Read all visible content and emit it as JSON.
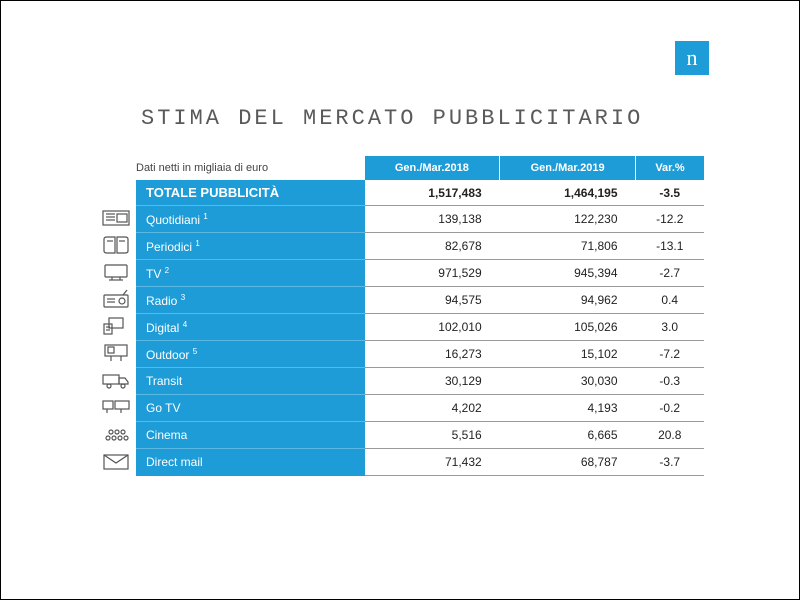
{
  "title": "STIMA DEL MERCATO PUBBLICITARIO",
  "subtitle": "Dati netti in migliaia di euro",
  "logo_text": "n",
  "colors": {
    "brand": "#1e9cd7",
    "text": "#222222",
    "border": "#999999"
  },
  "columns": [
    {
      "label": "Gen./Mar.2018"
    },
    {
      "label": "Gen./Mar.2019"
    },
    {
      "label": "Var.%"
    }
  ],
  "total_row": {
    "label": "TOTALE PUBBLICITÀ",
    "v2018": "1,517,483",
    "v2019": "1,464,195",
    "var": "-3.5"
  },
  "rows": [
    {
      "icon": "newspaper",
      "label": "Quotidiani",
      "sup": "1",
      "v2018": "139,138",
      "v2019": "122,230",
      "var": "-12.2"
    },
    {
      "icon": "book",
      "label": "Periodici",
      "sup": "1",
      "v2018": "82,678",
      "v2019": "71,806",
      "var": "-13.1"
    },
    {
      "icon": "tv",
      "label": "TV",
      "sup": "2",
      "v2018": "971,529",
      "v2019": "945,394",
      "var": "-2.7"
    },
    {
      "icon": "radio",
      "label": "Radio",
      "sup": "3",
      "v2018": "94,575",
      "v2019": "94,962",
      "var": "0.4"
    },
    {
      "icon": "digital",
      "label": "Digital",
      "sup": "4",
      "v2018": "102,010",
      "v2019": "105,026",
      "var": "3.0"
    },
    {
      "icon": "billboard",
      "label": "Outdoor",
      "sup": "5",
      "v2018": "16,273",
      "v2019": "15,102",
      "var": "-7.2"
    },
    {
      "icon": "truck",
      "label": "Transit",
      "sup": "",
      "v2018": "30,129",
      "v2019": "30,030",
      "var": "-0.3"
    },
    {
      "icon": "gotv",
      "label": "Go TV",
      "sup": "",
      "v2018": "4,202",
      "v2019": "4,193",
      "var": "-0.2"
    },
    {
      "icon": "cinema",
      "label": "Cinema",
      "sup": "",
      "v2018": "5,516",
      "v2019": "6,665",
      "var": "20.8"
    },
    {
      "icon": "mail",
      "label": "Direct mail",
      "sup": "",
      "v2018": "71,432",
      "v2019": "68,787",
      "var": "-3.7"
    }
  ]
}
